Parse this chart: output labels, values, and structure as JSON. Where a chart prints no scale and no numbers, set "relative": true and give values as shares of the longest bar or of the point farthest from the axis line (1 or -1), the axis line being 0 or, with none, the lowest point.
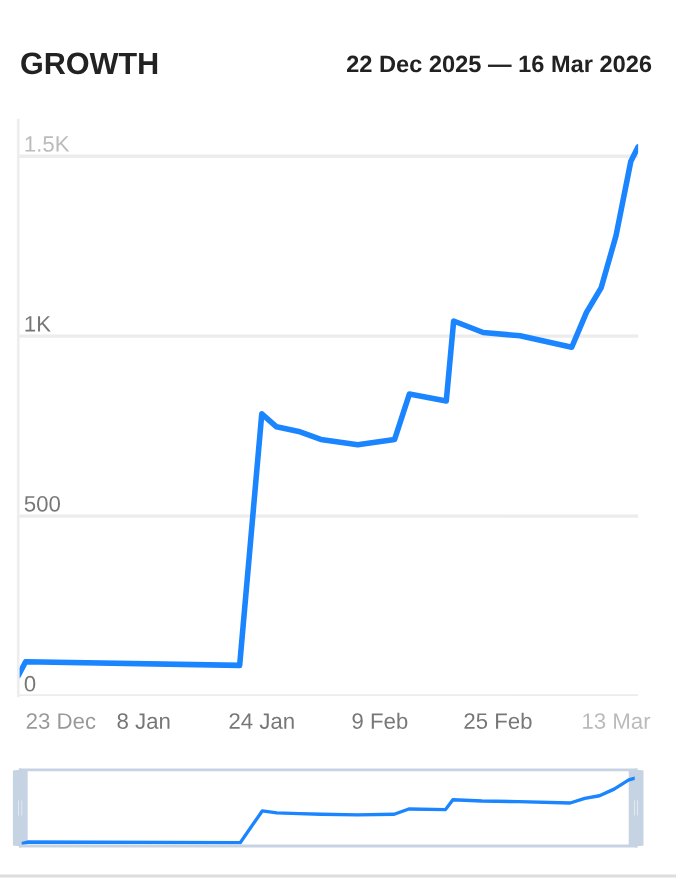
{
  "chart_data": [
    {
      "type": "line",
      "title": "GROWTH",
      "subtitle": "22 Dec 2025 — 16 Mar 2026",
      "x": [
        "2025-12-22",
        "2025-12-23",
        "2026-01-21",
        "2026-01-24",
        "2026-01-26",
        "2026-01-29",
        "2026-02-01",
        "2026-02-06",
        "2026-02-11",
        "2026-02-13",
        "2026-02-18",
        "2026-02-19",
        "2026-02-23",
        "2026-02-28",
        "2026-03-07",
        "2026-03-09",
        "2026-03-11",
        "2026-03-13",
        "2026-03-15",
        "2026-03-16"
      ],
      "series": [
        {
          "color": "#1a85ff",
          "values": [
            56,
            95,
            85,
            784,
            748,
            735,
            713,
            698,
            713,
            839,
            820,
            1042,
            1010,
            1001,
            969,
            1066,
            1135,
            1279,
            1485,
            1526
          ]
        }
      ],
      "xlim": [
        "2025-12-22",
        "2026-03-16"
      ],
      "xticks": [
        {
          "value": "2025-12-23",
          "label": "23 Dec"
        },
        {
          "value": "2026-01-08",
          "label": "8 Jan"
        },
        {
          "value": "2026-01-24",
          "label": "24 Jan"
        },
        {
          "value": "2026-02-09",
          "label": "9 Feb"
        },
        {
          "value": "2026-02-25",
          "label": "25 Feb"
        },
        {
          "value": "2026-03-13",
          "label": "13 Mar"
        }
      ],
      "ylim": [
        0,
        1600
      ],
      "yticks": [
        0,
        500,
        {
          "value": 1000,
          "label": "1K"
        },
        {
          "value": 1500,
          "label": "1.5K"
        }
      ],
      "grid": "y",
      "marker": "none",
      "line_style": "solid"
    },
    {
      "type": "line",
      "relative": true,
      "x": [
        "2025-12-22",
        "2025-12-23",
        "2026-01-21",
        "2026-01-24",
        "2026-01-26",
        "2026-01-29",
        "2026-02-01",
        "2026-02-06",
        "2026-02-11",
        "2026-02-13",
        "2026-02-18",
        "2026-02-19",
        "2026-02-23",
        "2026-02-28",
        "2026-03-07",
        "2026-03-09",
        "2026-03-11",
        "2026-03-13",
        "2026-03-15",
        "2026-03-16"
      ],
      "series": [
        {
          "color": "#1a85ff",
          "values": [
            0,
            0.03,
            0.02,
            0.5,
            0.47,
            0.46,
            0.45,
            0.44,
            0.45,
            0.53,
            0.52,
            0.67,
            0.65,
            0.64,
            0.62,
            0.69,
            0.73,
            0.83,
            0.97,
            1
          ]
        }
      ],
      "xlim": [
        "2025-12-22",
        "2026-03-16"
      ],
      "marker": "none",
      "line_style": "solid"
    }
  ]
}
